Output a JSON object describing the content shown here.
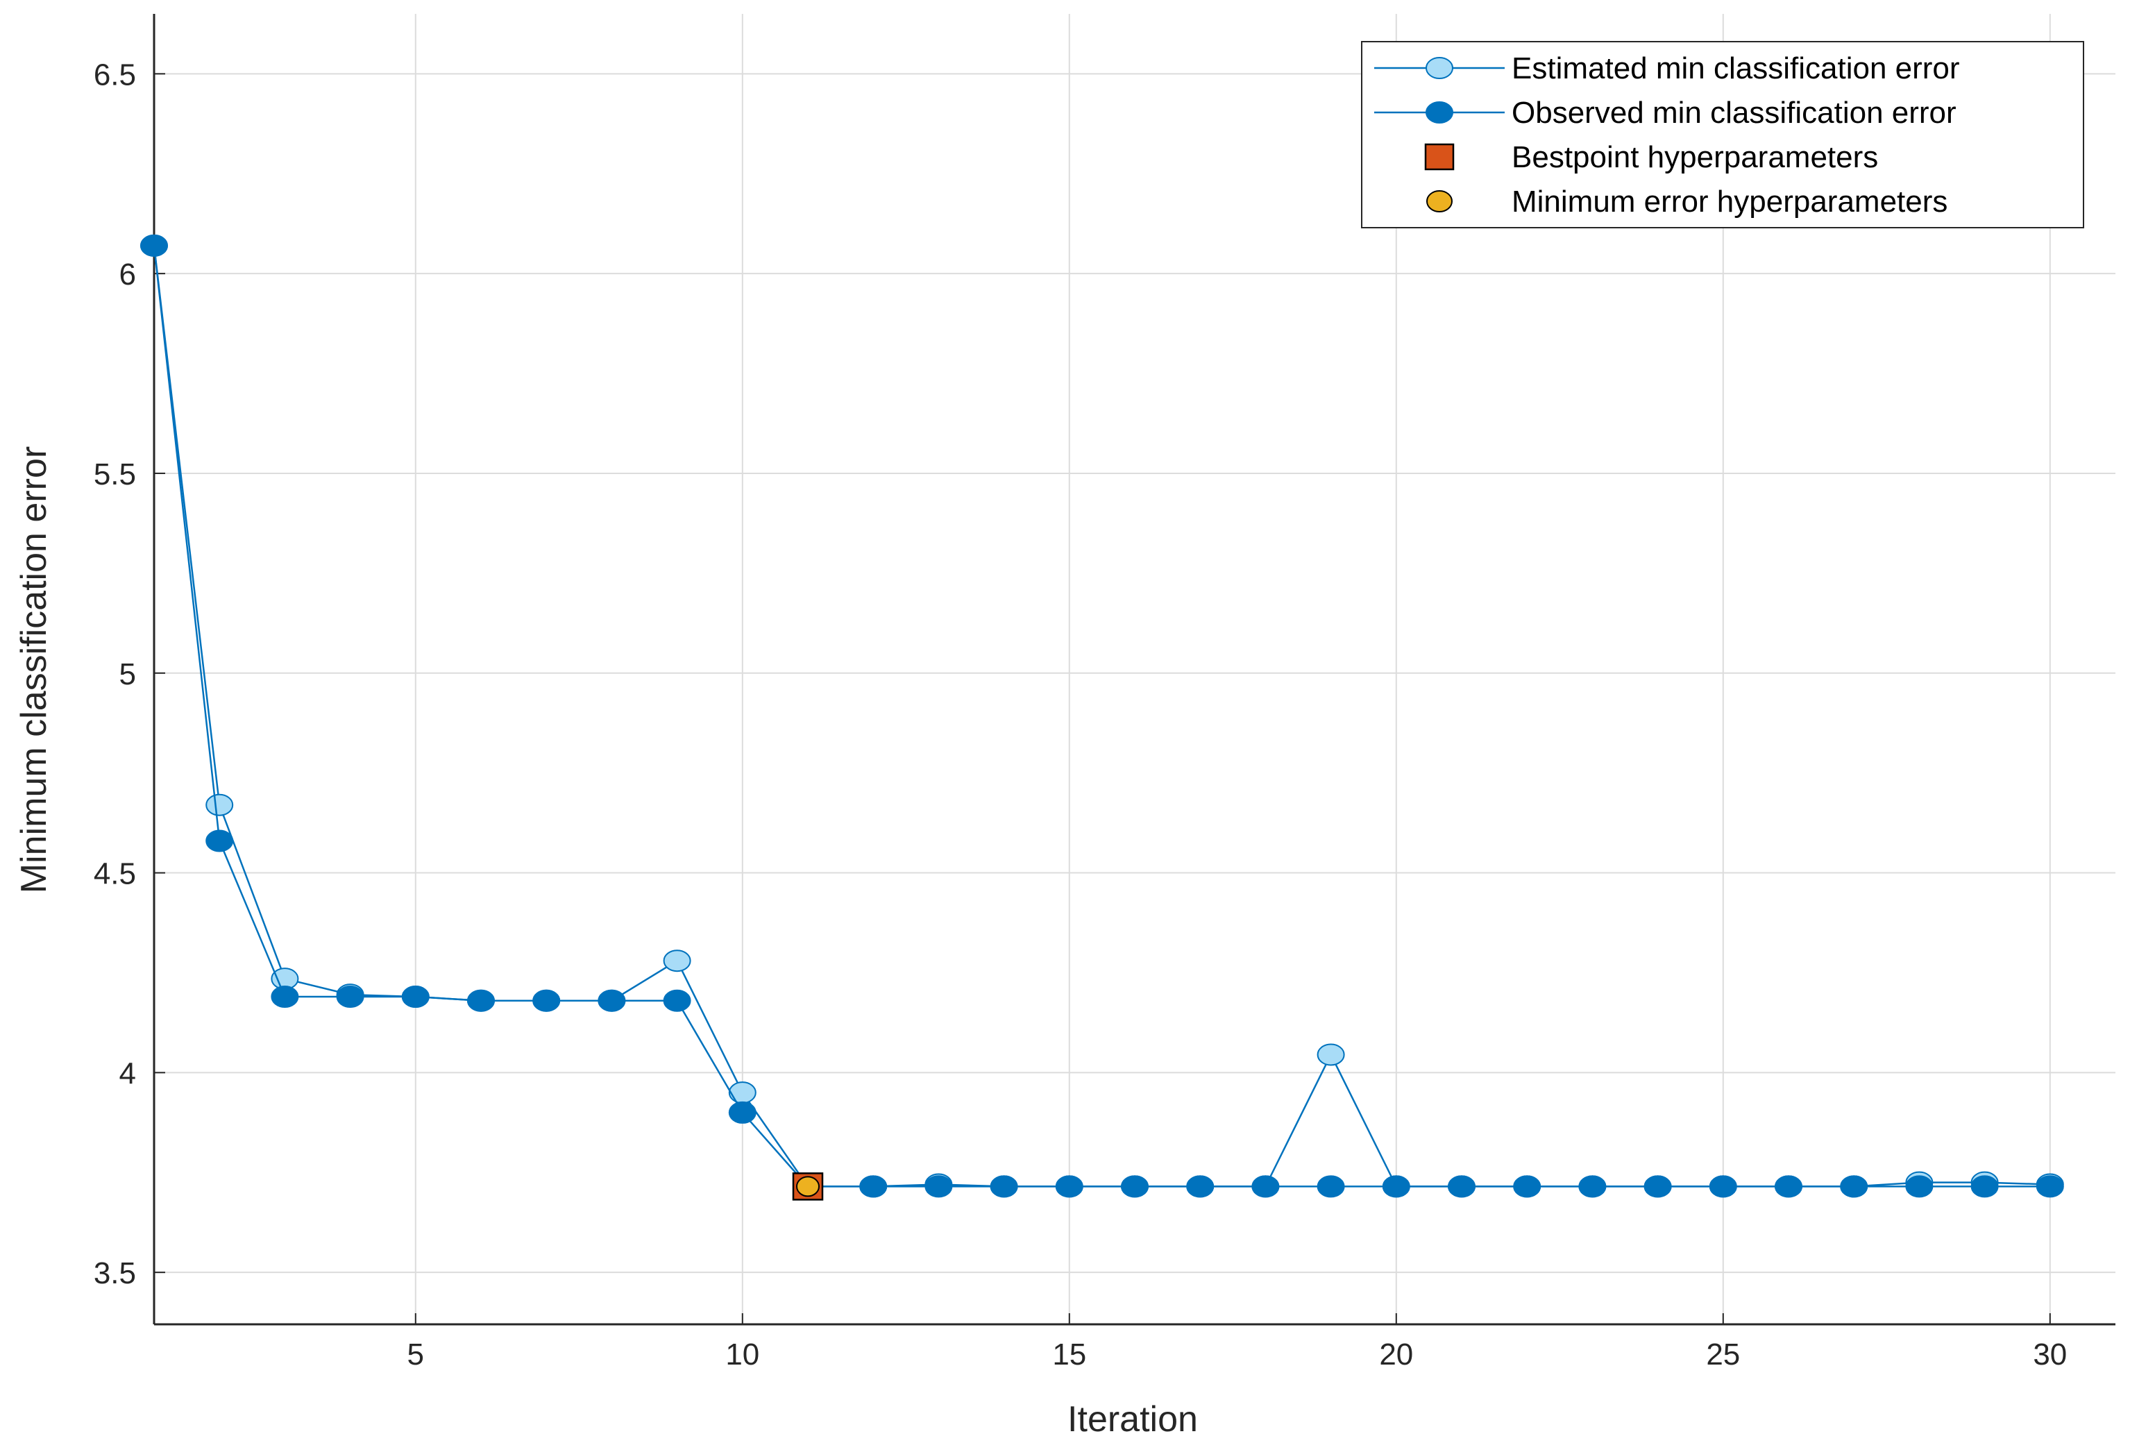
{
  "chart_data": {
    "type": "line",
    "title": "",
    "xlabel": "Iteration",
    "ylabel": "Minimum classification error",
    "xlim": [
      1,
      31
    ],
    "ylim": [
      3.37,
      6.65
    ],
    "x_ticks": [
      5,
      10,
      15,
      20,
      25,
      30
    ],
    "y_ticks": [
      3.5,
      4,
      4.5,
      5,
      5.5,
      6,
      6.5
    ],
    "grid": true,
    "legend_position": "top-right",
    "x": [
      1,
      2,
      3,
      4,
      5,
      6,
      7,
      8,
      9,
      10,
      11,
      12,
      13,
      14,
      15,
      16,
      17,
      18,
      19,
      20,
      21,
      22,
      23,
      24,
      25,
      26,
      27,
      28,
      29,
      30
    ],
    "series": [
      {
        "name": "Estimated min classification error",
        "marker": "open-circle",
        "color": "#0072bd",
        "fill": "#a8dcf7",
        "values": [
          6.07,
          4.67,
          4.235,
          4.195,
          4.19,
          4.18,
          4.18,
          4.18,
          4.28,
          3.95,
          3.715,
          3.715,
          3.72,
          3.715,
          3.715,
          3.715,
          3.715,
          3.715,
          4.045,
          3.715,
          3.715,
          3.715,
          3.715,
          3.715,
          3.715,
          3.715,
          3.715,
          3.725,
          3.725,
          3.72
        ]
      },
      {
        "name": "Observed min classification error",
        "marker": "filled-circle",
        "color": "#0072bd",
        "fill": "#0072bd",
        "values": [
          6.07,
          4.58,
          4.19,
          4.19,
          4.19,
          4.18,
          4.18,
          4.18,
          4.18,
          3.9,
          3.715,
          3.715,
          3.715,
          3.715,
          3.715,
          3.715,
          3.715,
          3.715,
          3.715,
          3.715,
          3.715,
          3.715,
          3.715,
          3.715,
          3.715,
          3.715,
          3.715,
          3.715,
          3.715,
          3.715
        ]
      }
    ],
    "points": [
      {
        "name": "Bestpoint hyperparameters",
        "marker": "square",
        "color": "#d95319",
        "x": 11,
        "y": 3.715
      },
      {
        "name": "Minimum error hyperparameters",
        "marker": "circle",
        "color": "#edb120",
        "x": 11,
        "y": 3.715
      }
    ]
  }
}
